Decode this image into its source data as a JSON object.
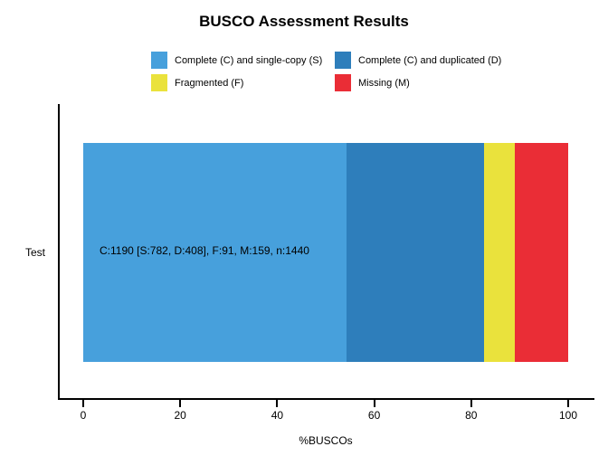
{
  "chart_data": {
    "type": "bar",
    "orientation": "horizontal",
    "stacked": true,
    "title": "BUSCO Assessment Results",
    "xlabel": "%BUSCOs",
    "xlim": [
      0,
      100
    ],
    "xticks": [
      0,
      20,
      40,
      60,
      80,
      100
    ],
    "categories": [
      "Test"
    ],
    "n": 1440,
    "series": [
      {
        "name": "Complete (C) and single-copy (S)",
        "key": "S",
        "count": 782,
        "percent": 54.3,
        "color": "#47A0DC"
      },
      {
        "name": "Complete (C) and duplicated (D)",
        "key": "D",
        "count": 408,
        "percent": 28.3,
        "color": "#2E7EBB"
      },
      {
        "name": "Fragmented (F)",
        "key": "F",
        "count": 91,
        "percent": 6.3,
        "color": "#EAE23C"
      },
      {
        "name": "Missing (M)",
        "key": "M",
        "count": 159,
        "percent": 11.0,
        "color": "#EA2D36"
      }
    ],
    "bar_label": "C:1190 [S:782, D:408], F:91, M:159, n:1440"
  }
}
